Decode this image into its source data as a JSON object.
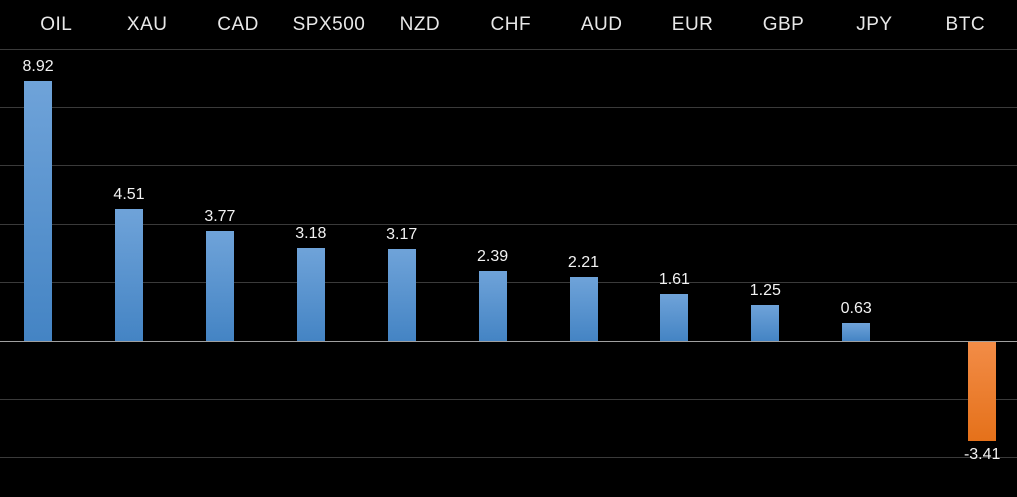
{
  "chart_data": {
    "type": "bar",
    "title": "",
    "xlabel": "",
    "ylabel": "",
    "categories": [
      "OIL",
      "XAU",
      "CAD",
      "SPX500",
      "NZD",
      "CHF",
      "AUD",
      "EUR",
      "GBP",
      "JPY",
      "BTC"
    ],
    "values": [
      8.92,
      4.51,
      3.77,
      3.18,
      3.17,
      2.39,
      2.21,
      1.61,
      1.25,
      0.63,
      -3.41
    ],
    "ylim": [
      -5.3,
      11.7
    ],
    "grid": true,
    "grid_min": -4,
    "grid_max": 10,
    "grid_step": 2,
    "legend": "none",
    "colors": {
      "background": "#000000",
      "grid": "#3a3a3a",
      "axis": "#a0a0a0",
      "bar_positive_top": "#6FA3D9",
      "bar_positive_bottom": "#4484C4",
      "bar_negative_top": "#F28C47",
      "bar_negative_bottom": "#E5711A",
      "category_text": "#e8e8e8",
      "value_text": "#f2f2f2"
    }
  }
}
